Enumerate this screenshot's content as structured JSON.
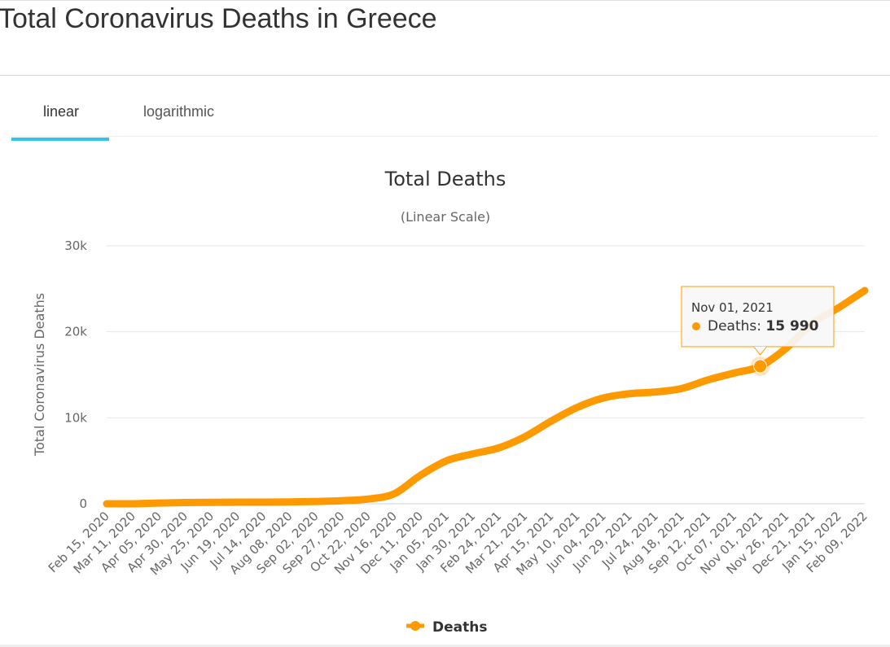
{
  "page_title": "Total Coronavirus Deaths in Greece",
  "tabs": [
    {
      "label": "linear",
      "active": true
    },
    {
      "label": "logarithmic",
      "active": false
    }
  ],
  "colors": {
    "series": "#ff9900",
    "tab_accent": "#33c3f0",
    "grid": "#e6e6e6"
  },
  "chart_data": {
    "type": "line",
    "title": "Total Deaths",
    "subtitle": "(Linear Scale)",
    "ylabel": "Total Coronavirus Deaths",
    "xlabel": "",
    "ylim": [
      0,
      30000
    ],
    "yticks": [
      {
        "value": 0,
        "label": "0"
      },
      {
        "value": 10000,
        "label": "10k"
      },
      {
        "value": 20000,
        "label": "20k"
      },
      {
        "value": 30000,
        "label": "30k"
      }
    ],
    "grid": true,
    "legend": "bottom",
    "categories": [
      "Feb 15, 2020",
      "Mar 11, 2020",
      "Apr 05, 2020",
      "Apr 30, 2020",
      "May 25, 2020",
      "Jun 19, 2020",
      "Jul 14, 2020",
      "Aug 08, 2020",
      "Sep 02, 2020",
      "Sep 27, 2020",
      "Oct 22, 2020",
      "Nov 16, 2020",
      "Dec 11, 2020",
      "Jan 05, 2021",
      "Jan 30, 2021",
      "Feb 24, 2021",
      "Mar 21, 2021",
      "Apr 15, 2021",
      "May 10, 2021",
      "Jun 04, 2021",
      "Jun 29, 2021",
      "Jul 24, 2021",
      "Aug 18, 2021",
      "Sep 12, 2021",
      "Oct 07, 2021",
      "Nov 01, 2021",
      "Nov 26, 2021",
      "Dec 21, 2021",
      "Jan 15, 2022",
      "Feb 09, 2022"
    ],
    "series": [
      {
        "name": "Deaths",
        "values": [
          0,
          1,
          80,
          140,
          171,
          190,
          193,
          212,
          266,
          357,
          550,
          1165,
          3300,
          5000,
          5800,
          6500,
          7800,
          9600,
          11200,
          12300,
          12800,
          13000,
          13400,
          14400,
          15200,
          15990,
          18100,
          21000,
          22800,
          24800
        ]
      }
    ],
    "tooltip": {
      "date": "Nov 01, 2021",
      "series": "Deaths",
      "label": "Deaths: ",
      "value": "15 990",
      "index": 25
    }
  }
}
